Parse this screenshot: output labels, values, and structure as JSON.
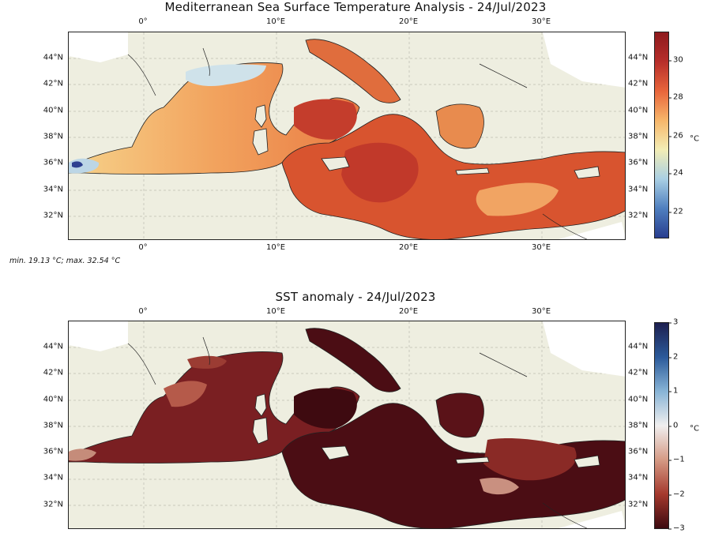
{
  "top_map": {
    "title": "Mediterranean Sea Surface Temperature Analysis - 24/Jul/2023",
    "lon_ticks": [
      "0°",
      "10°E",
      "20°E",
      "30°E"
    ],
    "lat_ticks": [
      "44°N",
      "42°N",
      "40°N",
      "38°N",
      "36°N",
      "34°N",
      "32°N"
    ],
    "stats": "min. 19.13 °C; max. 32.54 °C",
    "colorbar": {
      "ticks": [
        "30",
        "28",
        "26",
        "24",
        "22"
      ],
      "unit": "°C",
      "colors": [
        "#283e8f",
        "#4f7fbf",
        "#a9cfe3",
        "#f3edb5",
        "#f7b66a",
        "#e8653b",
        "#b72e2b",
        "#8e1a1d"
      ]
    }
  },
  "bottom_map": {
    "title": "SST anomaly - 24/Jul/2023",
    "lon_ticks": [
      "0°",
      "10°E",
      "20°E",
      "30°E"
    ],
    "lat_ticks": [
      "44°N",
      "42°N",
      "40°N",
      "38°N",
      "36°N",
      "34°N",
      "32°N"
    ],
    "colorbar": {
      "ticks": [
        "3",
        "2",
        "1",
        "0",
        "−1",
        "−2",
        "−3"
      ],
      "unit": "°C",
      "colors": [
        "#1d1f4f",
        "#2b5a9a",
        "#88b4d6",
        "#f0efef",
        "#d59a85",
        "#a5392d",
        "#3c0a10"
      ]
    }
  },
  "colors": {
    "land": "#eeeee0",
    "frame": "#222222",
    "sst_mid": "#e0703e",
    "sst_warm": "#c43d2c",
    "sst_cool": "#f5c36e",
    "anom_main": "#4b0d14",
    "anom_light": "#9b3c33"
  }
}
